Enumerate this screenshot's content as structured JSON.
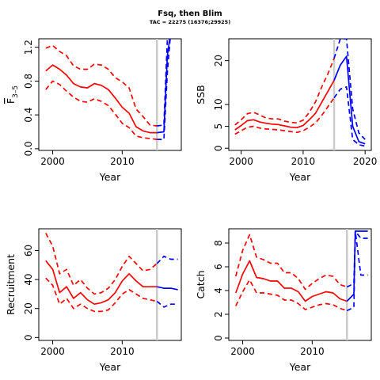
{
  "title": "Fsq, then Blim",
  "subtitle": "TAC = 22275 (16376;29925)",
  "colors": {
    "historic": "#ff0000",
    "projection": "#0000ff",
    "assessment_year_line": "#cccccc",
    "axis": "#000000"
  },
  "chart_data": [
    {
      "id": "f",
      "type": "line",
      "ylabel_main": "F",
      "ylabel_sub": "3–5",
      "xlabel": "Year",
      "xlim": [
        1998,
        2018.5
      ],
      "ylim": [
        -0.02,
        1.3
      ],
      "xticks": [
        2000,
        2010
      ],
      "yticks": [
        0,
        0.4,
        0.8,
        1.2
      ],
      "ytick_labels": [
        "0.0",
        "0.4",
        "0.8",
        "1.2"
      ],
      "vline_year": 2015,
      "series": [
        {
          "role": "historic-median",
          "color": "red",
          "dash": false,
          "x": [
            1999,
            2000,
            2001,
            2002,
            2003,
            2004,
            2005,
            2006,
            2007,
            2008,
            2009,
            2010,
            2011,
            2012,
            2013,
            2014,
            2015
          ],
          "y": [
            0.92,
            0.99,
            0.94,
            0.87,
            0.77,
            0.73,
            0.72,
            0.77,
            0.75,
            0.7,
            0.6,
            0.49,
            0.42,
            0.26,
            0.21,
            0.19,
            0.19
          ]
        },
        {
          "role": "historic-upper",
          "color": "red",
          "dash": true,
          "x": [
            1999,
            2000,
            2001,
            2002,
            2003,
            2004,
            2005,
            2006,
            2007,
            2008,
            2009,
            2010,
            2011,
            2012,
            2013,
            2014,
            2015
          ],
          "y": [
            1.19,
            1.22,
            1.15,
            1.1,
            0.98,
            0.94,
            0.94,
            1.0,
            0.99,
            0.94,
            0.84,
            0.79,
            0.72,
            0.47,
            0.38,
            0.28,
            0.27
          ]
        },
        {
          "role": "historic-lower",
          "color": "red",
          "dash": true,
          "x": [
            1999,
            2000,
            2001,
            2002,
            2003,
            2004,
            2005,
            2006,
            2007,
            2008,
            2009,
            2010,
            2011,
            2012,
            2013,
            2014,
            2015
          ],
          "y": [
            0.7,
            0.8,
            0.76,
            0.68,
            0.61,
            0.56,
            0.55,
            0.59,
            0.56,
            0.51,
            0.41,
            0.3,
            0.25,
            0.15,
            0.13,
            0.12,
            0.11
          ]
        },
        {
          "role": "projection-median",
          "color": "blue",
          "dash": false,
          "x": [
            2015,
            2016,
            2016.5,
            2017
          ],
          "y": [
            0.19,
            0.2,
            1.1,
            1.4
          ]
        },
        {
          "role": "projection-upper",
          "color": "blue",
          "dash": true,
          "x": [
            2015,
            2016,
            2016.5,
            2017
          ],
          "y": [
            0.27,
            0.28,
            1.3,
            1.4
          ]
        },
        {
          "role": "projection-lower",
          "color": "blue",
          "dash": true,
          "x": [
            2015,
            2016,
            2016.5,
            2017
          ],
          "y": [
            0.11,
            0.11,
            0.9,
            1.4
          ]
        }
      ]
    },
    {
      "id": "ssb",
      "type": "line",
      "ylabel": "SSB",
      "xlabel": "Year",
      "xlim": [
        1998,
        2021
      ],
      "ylim": [
        -0.5,
        25
      ],
      "xticks": [
        2000,
        2010,
        2020
      ],
      "yticks": [
        0,
        5,
        10,
        20
      ],
      "ytick_labels": [
        "0",
        "5",
        "10",
        "20"
      ],
      "vline_year": 2015,
      "series": [
        {
          "role": "historic-median",
          "color": "red",
          "dash": false,
          "x": [
            1999,
            2000,
            2001,
            2002,
            2003,
            2004,
            2005,
            2006,
            2007,
            2008,
            2009,
            2010,
            2011,
            2012,
            2013,
            2014,
            2015
          ],
          "y": [
            4.2,
            5.2,
            6.3,
            6.5,
            6.0,
            5.7,
            5.5,
            5.4,
            5.1,
            4.8,
            4.7,
            5.2,
            6.5,
            8.0,
            10.5,
            13.0,
            15.5
          ]
        },
        {
          "role": "historic-upper",
          "color": "red",
          "dash": true,
          "x": [
            1999,
            2000,
            2001,
            2002,
            2003,
            2004,
            2005,
            2006,
            2007,
            2008,
            2009,
            2010,
            2011,
            2012,
            2013,
            2014,
            2015
          ],
          "y": [
            5.3,
            6.5,
            7.9,
            8.2,
            7.6,
            6.9,
            6.7,
            6.7,
            6.2,
            5.9,
            5.8,
            6.4,
            8.2,
            10.6,
            14.0,
            17.0,
            20.5
          ]
        },
        {
          "role": "historic-lower",
          "color": "red",
          "dash": true,
          "x": [
            1999,
            2000,
            2001,
            2002,
            2003,
            2004,
            2005,
            2006,
            2007,
            2008,
            2009,
            2010,
            2011,
            2012,
            2013,
            2014,
            2015
          ],
          "y": [
            3.2,
            4.0,
            4.8,
            5.0,
            4.6,
            4.4,
            4.3,
            4.2,
            4.0,
            3.8,
            3.6,
            4.0,
            4.8,
            5.8,
            7.5,
            9.5,
            11.5
          ]
        },
        {
          "role": "projection-median",
          "color": "blue",
          "dash": false,
          "x": [
            2015,
            2016,
            2017,
            2018,
            2019,
            2020
          ],
          "y": [
            15.5,
            19.0,
            21.0,
            5.0,
            1.5,
            1.0
          ]
        },
        {
          "role": "projection-upper",
          "color": "blue",
          "dash": true,
          "x": [
            2015,
            2016,
            2017,
            2018,
            2019,
            2020
          ],
          "y": [
            20.5,
            25.0,
            25.0,
            9.0,
            3.5,
            2.0
          ]
        },
        {
          "role": "projection-lower",
          "color": "blue",
          "dash": true,
          "x": [
            2015,
            2016,
            2017,
            2018,
            2019,
            2020
          ],
          "y": [
            11.5,
            13.5,
            14.0,
            2.0,
            0.8,
            0.5
          ]
        }
      ]
    },
    {
      "id": "recruitment",
      "type": "line",
      "ylabel": "Recruitment",
      "xlabel": "Year",
      "xlim": [
        1998,
        2018.5
      ],
      "ylim": [
        -2,
        75
      ],
      "xticks": [
        2000,
        2010
      ],
      "yticks": [
        0,
        20,
        40,
        60
      ],
      "ytick_labels": [
        "0",
        "20",
        "40",
        "60"
      ],
      "vline_year": 2015,
      "series": [
        {
          "role": "historic-median",
          "color": "red",
          "dash": false,
          "x": [
            1999,
            2000,
            2001,
            2002,
            2003,
            2004,
            2005,
            2006,
            2007,
            2008,
            2009,
            2010,
            2011,
            2012,
            2013,
            2014,
            2015
          ],
          "y": [
            53,
            47,
            31,
            35,
            27,
            31,
            26,
            23,
            24,
            26,
            31,
            39,
            44,
            39,
            35,
            35,
            35
          ]
        },
        {
          "role": "historic-upper",
          "color": "red",
          "dash": true,
          "x": [
            1999,
            2000,
            2001,
            2002,
            2003,
            2004,
            2005,
            2006,
            2007,
            2008,
            2009,
            2010,
            2011,
            2012,
            2013,
            2014,
            2015
          ],
          "y": [
            72,
            63,
            44,
            47,
            36,
            40,
            34,
            30,
            31,
            34,
            40,
            49,
            56,
            51,
            46,
            47,
            51
          ]
        },
        {
          "role": "historic-lower",
          "color": "red",
          "dash": true,
          "x": [
            1999,
            2000,
            2001,
            2002,
            2003,
            2004,
            2005,
            2006,
            2007,
            2008,
            2009,
            2010,
            2011,
            2012,
            2013,
            2014,
            2015
          ],
          "y": [
            41,
            36,
            23,
            27,
            20,
            23,
            20,
            18,
            18,
            19,
            24,
            30,
            33,
            30,
            27,
            26,
            25
          ]
        },
        {
          "role": "projection-median",
          "color": "blue",
          "dash": false,
          "x": [
            2015,
            2016,
            2017,
            2018
          ],
          "y": [
            35,
            34,
            34,
            33
          ]
        },
        {
          "role": "projection-upper",
          "color": "blue",
          "dash": true,
          "x": [
            2015,
            2016,
            2017,
            2018
          ],
          "y": [
            51,
            56,
            54,
            54
          ]
        },
        {
          "role": "projection-lower",
          "color": "blue",
          "dash": true,
          "x": [
            2015,
            2016,
            2017,
            2018
          ],
          "y": [
            25,
            21,
            23,
            23
          ]
        }
      ]
    },
    {
      "id": "catch",
      "type": "line",
      "ylabel": "Catch",
      "xlabel": "Year",
      "xlim": [
        1998,
        2018.5
      ],
      "ylim": [
        -0.2,
        9.2
      ],
      "xticks": [
        2000,
        2010
      ],
      "yticks": [
        0,
        2,
        4,
        6,
        8
      ],
      "ytick_labels": [
        "0",
        "2",
        "4",
        "6",
        "8"
      ],
      "vline_year": 2015,
      "series": [
        {
          "role": "historic-median",
          "color": "red",
          "dash": false,
          "x": [
            1999,
            2000,
            2001,
            2002,
            2003,
            2004,
            2005,
            2006,
            2007,
            2008,
            2009,
            2010,
            2011,
            2012,
            2013,
            2014,
            2015
          ],
          "y": [
            3.8,
            5.4,
            6.5,
            5.1,
            5.0,
            4.8,
            4.8,
            4.2,
            4.2,
            3.9,
            3.1,
            3.5,
            3.7,
            3.9,
            3.8,
            3.3,
            3.1
          ]
        },
        {
          "role": "historic-upper",
          "color": "red",
          "dash": true,
          "x": [
            1999,
            2000,
            2001,
            2002,
            2003,
            2004,
            2005,
            2006,
            2007,
            2008,
            2009,
            2010,
            2011,
            2012,
            2013,
            2014,
            2015
          ],
          "y": [
            5.2,
            7.4,
            8.7,
            6.8,
            6.6,
            6.3,
            6.3,
            5.5,
            5.5,
            5.0,
            4.1,
            4.6,
            5.0,
            5.3,
            5.2,
            4.5,
            4.3
          ]
        },
        {
          "role": "historic-lower",
          "color": "red",
          "dash": true,
          "x": [
            1999,
            2000,
            2001,
            2002,
            2003,
            2004,
            2005,
            2006,
            2007,
            2008,
            2009,
            2010,
            2011,
            2012,
            2013,
            2014,
            2015
          ],
          "y": [
            2.7,
            3.9,
            4.9,
            3.8,
            3.8,
            3.7,
            3.6,
            3.2,
            3.2,
            2.9,
            2.4,
            2.6,
            2.8,
            2.9,
            2.8,
            2.5,
            2.3
          ]
        },
        {
          "role": "projection-median",
          "color": "blue",
          "dash": false,
          "x": [
            2015,
            2016,
            2016.2,
            2017,
            2018
          ],
          "y": [
            3.1,
            3.7,
            9.0,
            9.0,
            9.0
          ]
        },
        {
          "role": "projection-upper",
          "color": "blue",
          "dash": true,
          "x": [
            2015,
            2016,
            2016.2,
            2017,
            2018
          ],
          "y": [
            4.3,
            4.6,
            9.0,
            8.4,
            8.4
          ]
        },
        {
          "role": "projection-lower",
          "color": "blue",
          "dash": true,
          "x": [
            2015,
            2016,
            2016.2,
            2017,
            2018
          ],
          "y": [
            2.3,
            2.6,
            9.0,
            5.3,
            5.3
          ]
        }
      ]
    }
  ]
}
